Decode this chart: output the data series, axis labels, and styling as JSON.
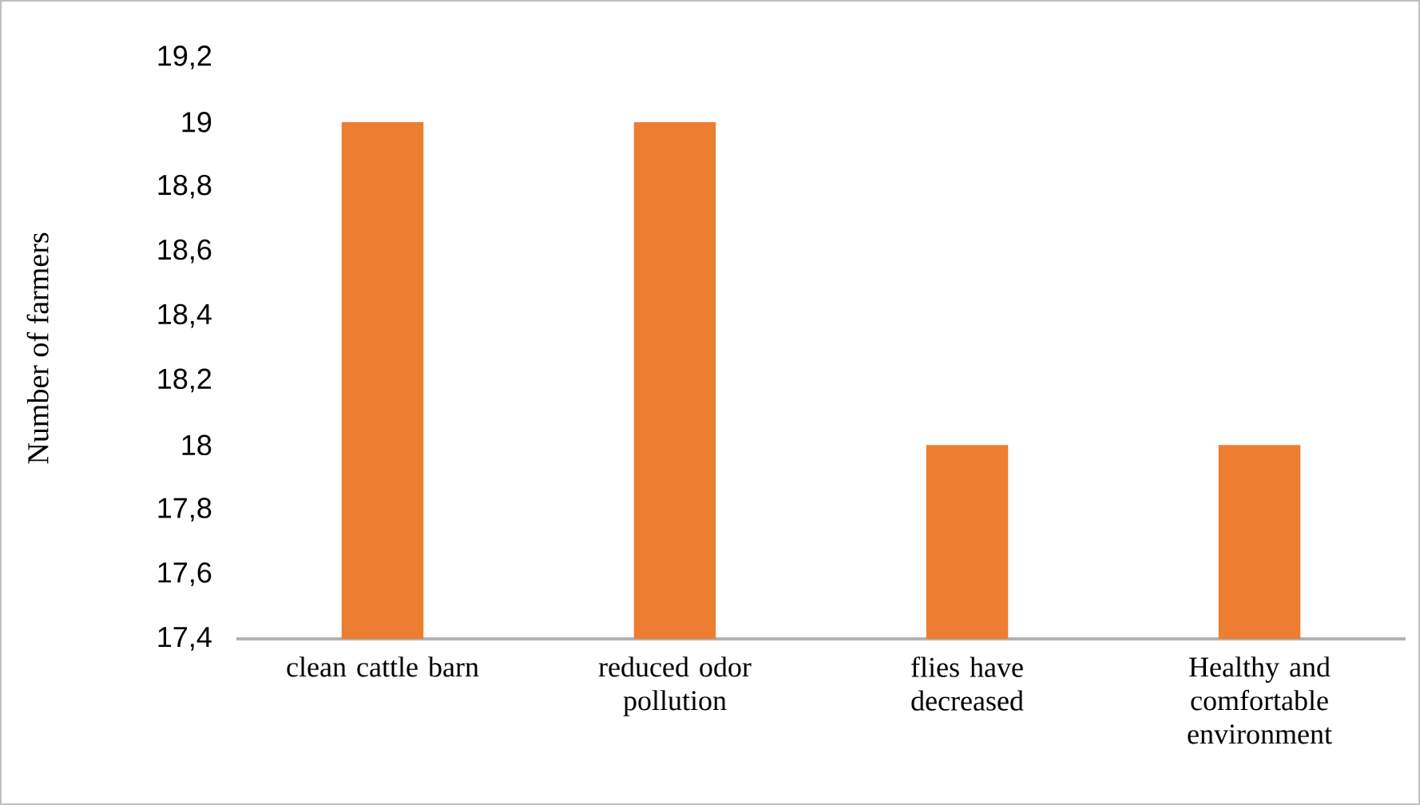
{
  "chart_data": {
    "type": "bar",
    "ylabel": "Number of farmers",
    "categories": [
      "clean cattle barn",
      "reduced odor pollution",
      "flies have decreased",
      "Healthy and comfortable environment"
    ],
    "values": [
      19,
      19,
      18,
      18
    ],
    "color": "#ed7d31",
    "ylim": [
      17.4,
      19.2
    ],
    "yticks": [
      {
        "value": 17.4,
        "label": "17,4"
      },
      {
        "value": 17.6,
        "label": "17,6"
      },
      {
        "value": 17.8,
        "label": "17,8"
      },
      {
        "value": 18,
        "label": "18"
      },
      {
        "value": 18.2,
        "label": "18,2"
      },
      {
        "value": 18.4,
        "label": "18,4"
      },
      {
        "value": 18.6,
        "label": "18,6"
      },
      {
        "value": 18.8,
        "label": "18,8"
      },
      {
        "value": 19,
        "label": "19"
      },
      {
        "value": 19.2,
        "label": "19,2"
      }
    ],
    "grid": false
  }
}
